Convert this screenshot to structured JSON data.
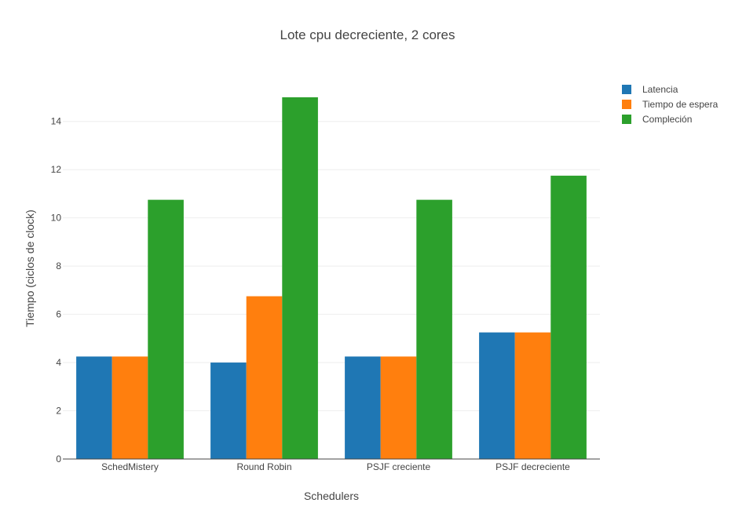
{
  "chart_data": {
    "type": "bar",
    "title": "Lote cpu decreciente, 2 cores",
    "xlabel": "Schedulers",
    "ylabel": "Tiempo (ciclos de clock)",
    "categories": [
      "SchedMistery",
      "Round Robin",
      "PSJF creciente",
      "PSJF decreciente"
    ],
    "series": [
      {
        "name": "Latencia",
        "color": "#1f77b4",
        "values": [
          4.25,
          4.0,
          4.25,
          5.25
        ]
      },
      {
        "name": "Tiempo de espera",
        "color": "#ff7f0e",
        "values": [
          4.25,
          6.75,
          4.25,
          5.25
        ]
      },
      {
        "name": "Compleción",
        "color": "#2ca02c",
        "values": [
          10.75,
          15.0,
          10.75,
          11.75
        ]
      }
    ],
    "ylim": [
      0,
      15
    ],
    "yticks": [
      0,
      2,
      4,
      6,
      8,
      10,
      12,
      14
    ],
    "grid": true,
    "legend": "top-right"
  }
}
